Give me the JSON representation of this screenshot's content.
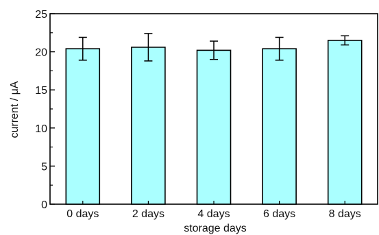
{
  "chart_data": {
    "type": "bar",
    "categories": [
      "0 days",
      "2 days",
      "4 days",
      "6 days",
      "8 days"
    ],
    "values": [
      20.4,
      20.6,
      20.2,
      20.4,
      21.5
    ],
    "errors": [
      1.5,
      1.8,
      1.2,
      1.5,
      0.6
    ],
    "xlabel": "storage days",
    "ylabel": "current / μA",
    "ylim": [
      0,
      25
    ],
    "yticks": [
      0,
      5,
      10,
      15,
      20,
      25
    ],
    "grid": false,
    "colors": {
      "bar_fill": "#aaffff",
      "bar_stroke": "#000000",
      "axis": "#000000"
    }
  }
}
